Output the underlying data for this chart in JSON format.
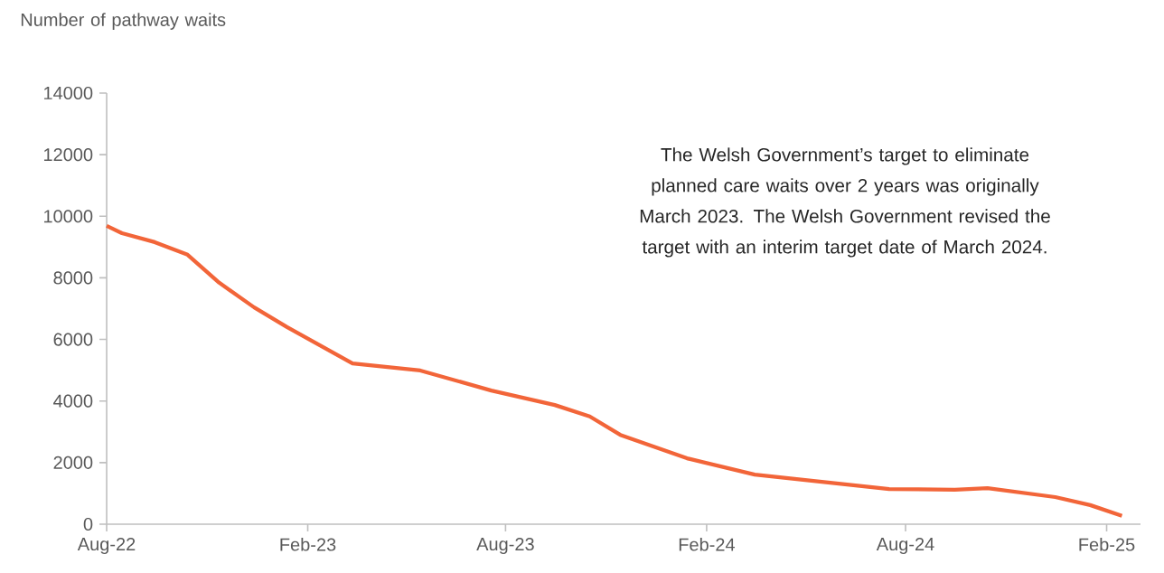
{
  "chart_data": {
    "type": "line",
    "ylabel": "Number of pathway waits",
    "annotations": [
      "The Welsh Government’s target to eliminate planned care waits over 2 years was originally March 2023. The Welsh Government revised the target with an interim target date of March 2024."
    ],
    "x": [
      "2022-08-01",
      "2022-08-15",
      "2022-09-14",
      "2022-10-14",
      "2022-11-12",
      "2022-12-14",
      "2023-01-13",
      "2023-03-14",
      "2023-05-15",
      "2023-07-19",
      "2023-09-15",
      "2023-10-17",
      "2023-11-14",
      "2024-01-14",
      "2024-03-16",
      "2024-07-17",
      "2024-09-15",
      "2024-10-15",
      "2024-12-16",
      "2025-01-17",
      "2025-02-15"
    ],
    "series": [
      {
        "color": "#f26539",
        "values": [
          9690,
          9450,
          9160,
          8750,
          7840,
          7040,
          6400,
          5220,
          4990,
          4340,
          3870,
          3500,
          2900,
          2140,
          1610,
          1140,
          1120,
          1170,
          880,
          620,
          270
        ]
      }
    ],
    "xlim": [
      "2022-08-01",
      "2025-03-04"
    ],
    "ylim": [
      0,
      14000
    ],
    "xticks": [
      {
        "value": "2022-08-01",
        "label": "Aug-22"
      },
      {
        "value": "2023-02-01",
        "label": "Feb-23"
      },
      {
        "value": "2023-08-01",
        "label": "Aug-23"
      },
      {
        "value": "2024-02-01",
        "label": "Feb-24"
      },
      {
        "value": "2024-08-01",
        "label": "Aug-24"
      },
      {
        "value": "2025-02-01",
        "label": "Feb-25"
      }
    ],
    "yticks": [
      0,
      2000,
      4000,
      6000,
      8000,
      10000,
      12000,
      14000
    ],
    "marker": "none"
  }
}
